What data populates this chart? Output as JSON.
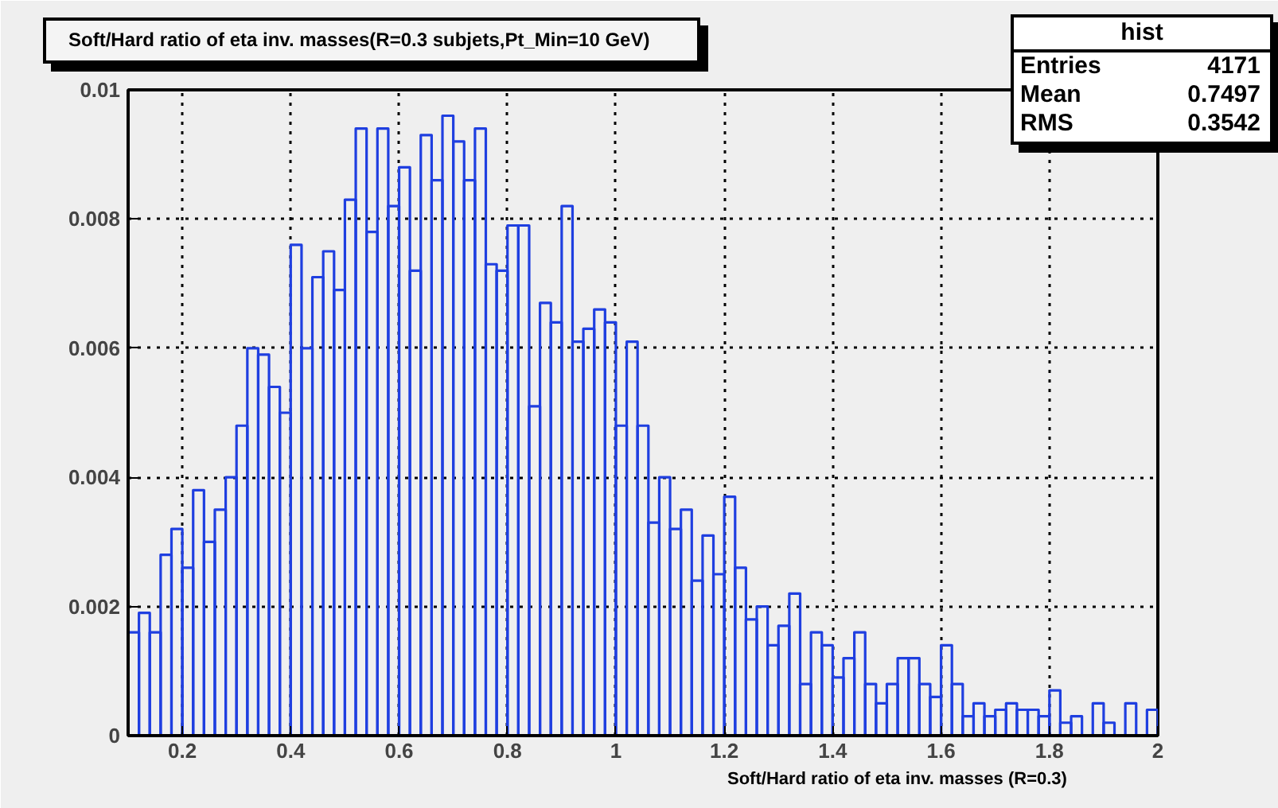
{
  "chart_data": {
    "type": "histogram",
    "title": "Soft/Hard ratio of eta inv. masses(R=0.3 subjets,Pt_Min=10 GeV)",
    "xlabel": "Soft/Hard ratio of eta inv. masses (R=0.3)",
    "annotations": [
      "hist",
      "Entries",
      "4171",
      "Mean",
      "0.7497",
      "RMS",
      "0.3542"
    ],
    "bins": [
      0.1,
      0.12,
      0.14,
      0.16,
      0.18,
      0.2,
      0.22,
      0.24,
      0.26,
      0.28,
      0.3,
      0.32,
      0.34,
      0.36,
      0.38,
      0.4,
      0.42,
      0.44,
      0.46,
      0.48,
      0.5,
      0.52,
      0.54,
      0.56,
      0.58,
      0.6,
      0.62,
      0.64,
      0.66,
      0.68,
      0.7,
      0.72,
      0.74,
      0.76,
      0.78,
      0.8,
      0.82,
      0.84,
      0.86,
      0.88,
      0.9,
      0.92,
      0.94,
      0.96,
      0.98,
      1.0,
      1.02,
      1.04,
      1.06,
      1.08,
      1.1,
      1.12,
      1.14,
      1.16,
      1.18,
      1.2,
      1.22,
      1.24,
      1.26,
      1.28,
      1.3,
      1.32,
      1.34,
      1.36,
      1.38,
      1.4,
      1.42,
      1.44,
      1.46,
      1.48,
      1.5,
      1.52,
      1.54,
      1.56,
      1.58,
      1.6,
      1.62,
      1.64,
      1.66,
      1.68,
      1.7,
      1.72,
      1.74,
      1.76,
      1.78,
      1.8,
      1.82,
      1.84,
      1.86,
      1.88,
      1.9,
      1.92,
      1.94,
      1.96,
      1.98,
      2.0
    ],
    "values": [
      0.0016,
      0.0019,
      0.0016,
      0.0028,
      0.0032,
      0.0026,
      0.0038,
      0.003,
      0.0035,
      0.004,
      0.0048,
      0.006,
      0.0059,
      0.0054,
      0.005,
      0.0076,
      0.006,
      0.0071,
      0.0075,
      0.0069,
      0.0083,
      0.0094,
      0.0078,
      0.0094,
      0.0082,
      0.0088,
      0.0072,
      0.0093,
      0.0086,
      0.0096,
      0.0092,
      0.0086,
      0.0094,
      0.0073,
      0.0072,
      0.0079,
      0.0079,
      0.0051,
      0.0067,
      0.0064,
      0.0082,
      0.0061,
      0.0063,
      0.0066,
      0.0064,
      0.0048,
      0.0061,
      0.0048,
      0.0033,
      0.004,
      0.0032,
      0.0035,
      0.0024,
      0.0031,
      0.0025,
      0.0037,
      0.0026,
      0.0018,
      0.002,
      0.0014,
      0.0017,
      0.0022,
      0.0008,
      0.0016,
      0.0014,
      0.0009,
      0.0012,
      0.0016,
      0.0008,
      0.0005,
      0.0008,
      0.0012,
      0.0012,
      0.0008,
      0.0006,
      0.0014,
      0.0008,
      0.0003,
      0.0005,
      0.0003,
      0.0004,
      0.0005,
      0.0004,
      0.0004,
      0.0003,
      0.0007,
      0.0002,
      0.0003,
      0.0,
      0.0005,
      0.0002,
      0.0,
      0.0005,
      0.0,
      0.0004
    ],
    "color": "#1f3fe0",
    "xlim": [
      0.1,
      2.0
    ],
    "ylim": [
      0,
      0.01
    ],
    "xticks": [
      0.2,
      0.4,
      0.6,
      0.8,
      1,
      1.2,
      1.4,
      1.6,
      1.8,
      2
    ],
    "yticks": [
      0,
      0.002,
      0.004,
      0.006,
      0.008,
      0.01
    ],
    "grid": true,
    "line_style": "solid"
  }
}
